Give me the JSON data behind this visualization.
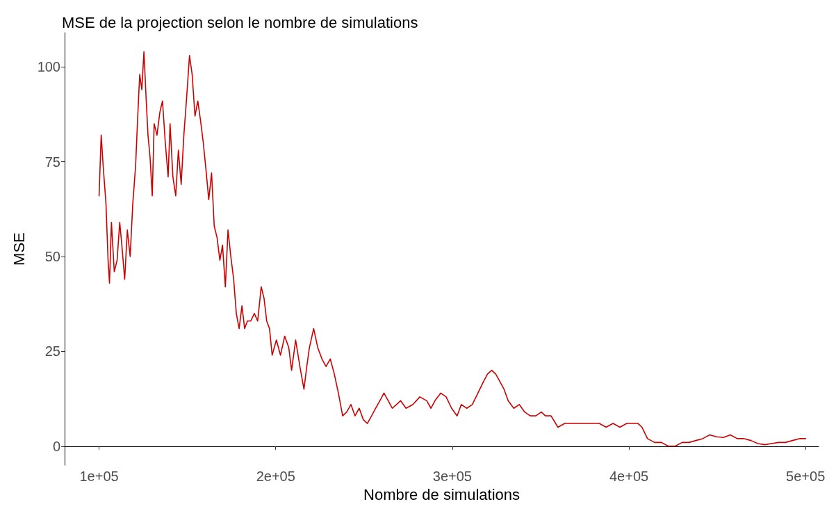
{
  "chart_data": {
    "type": "line",
    "title": "MSE de la projection selon le nombre de simulations",
    "xlabel": "Nombre de simulations",
    "ylabel": "MSE",
    "x": [
      100000,
      101200,
      102300,
      103900,
      105100,
      105900,
      107000,
      108600,
      110200,
      111700,
      112900,
      114500,
      116000,
      117600,
      119100,
      120700,
      121900,
      123000,
      124200,
      125400,
      126600,
      127700,
      128900,
      130100,
      131200,
      132800,
      134400,
      135900,
      137500,
      139100,
      140200,
      141800,
      143400,
      144900,
      146500,
      148000,
      149600,
      151200,
      152700,
      154300,
      155900,
      157400,
      159000,
      160500,
      162100,
      163700,
      165200,
      166800,
      168400,
      169900,
      171500,
      173000,
      174600,
      176200,
      177700,
      179300,
      180900,
      182400,
      184000,
      185900,
      187900,
      189800,
      191800,
      193400,
      194900,
      196500,
      198000,
      200400,
      202700,
      205100,
      207400,
      209000,
      211300,
      213700,
      216000,
      217600,
      219100,
      221500,
      223800,
      226200,
      228500,
      230900,
      233200,
      235500,
      237900,
      240200,
      242600,
      244900,
      247300,
      249600,
      251900,
      254300,
      256600,
      259000,
      261300,
      263700,
      266000,
      268400,
      270700,
      273800,
      277700,
      281600,
      285500,
      287900,
      290200,
      293400,
      296500,
      299600,
      302700,
      305100,
      308200,
      311300,
      314500,
      317600,
      319900,
      322300,
      324600,
      327000,
      329300,
      331600,
      334800,
      337900,
      341000,
      344100,
      347300,
      350400,
      352700,
      355900,
      359800,
      363700,
      367600,
      371500,
      375400,
      379300,
      383200,
      387100,
      391000,
      394900,
      398800,
      402700,
      405100,
      407400,
      410500,
      414500,
      418400,
      422300,
      426200,
      430100,
      434000,
      437900,
      441800,
      445700,
      449600,
      453500,
      457400,
      461300,
      465200,
      469100,
      473000,
      476900,
      480800,
      484700,
      488600,
      492600,
      496500,
      500000
    ],
    "series": [
      {
        "color": "#cd0000",
        "values": [
          66,
          82,
          74,
          64,
          49,
          43,
          59,
          46,
          49,
          59,
          53,
          44,
          57,
          50,
          64,
          74,
          87,
          98,
          94,
          104,
          92,
          82,
          76,
          66,
          85,
          82,
          88,
          91,
          80,
          71,
          85,
          71,
          66,
          78,
          69,
          82,
          92,
          103,
          98,
          87,
          91,
          86,
          80,
          73,
          65,
          72,
          58,
          55,
          49,
          53,
          42,
          57,
          50,
          44,
          35,
          31,
          37,
          31,
          33,
          33,
          35,
          33,
          42,
          39,
          33,
          31,
          24,
          28,
          24,
          29,
          26,
          20,
          28,
          21,
          15,
          21,
          26,
          31,
          26,
          23,
          21,
          23,
          19,
          14,
          8,
          9,
          11,
          8,
          10,
          7,
          6,
          8,
          10,
          12,
          14,
          12,
          10,
          11,
          12,
          10,
          11,
          13,
          12,
          10,
          12,
          14,
          13,
          10,
          8,
          11,
          10,
          11,
          14,
          17,
          19,
          20,
          19,
          17,
          15,
          12,
          10,
          11,
          9,
          8,
          8,
          9,
          8,
          8,
          5,
          6,
          6,
          6,
          6,
          6,
          6,
          5,
          6,
          5,
          6,
          6,
          6,
          5,
          2,
          1,
          1,
          0,
          0,
          1,
          1,
          1.5,
          2,
          3,
          2.5,
          2.3,
          3,
          2,
          2,
          1.5,
          0.7,
          0.4,
          0.7,
          1,
          1,
          1.5,
          2,
          2
        ]
      }
    ],
    "xlim": [
      80500,
      507400
    ],
    "xticks": [
      {
        "value": 100000,
        "label": "1e+05"
      },
      {
        "value": 200000,
        "label": "2e+05"
      },
      {
        "value": 300000,
        "label": "3e+05"
      },
      {
        "value": 400000,
        "label": "4e+05"
      },
      {
        "value": 500000,
        "label": "5e+05"
      }
    ],
    "ylim": [
      -5,
      109
    ],
    "yticks": [
      0,
      25,
      50,
      75,
      100
    ],
    "grid": false,
    "marker": "none",
    "line_style": "solid"
  }
}
